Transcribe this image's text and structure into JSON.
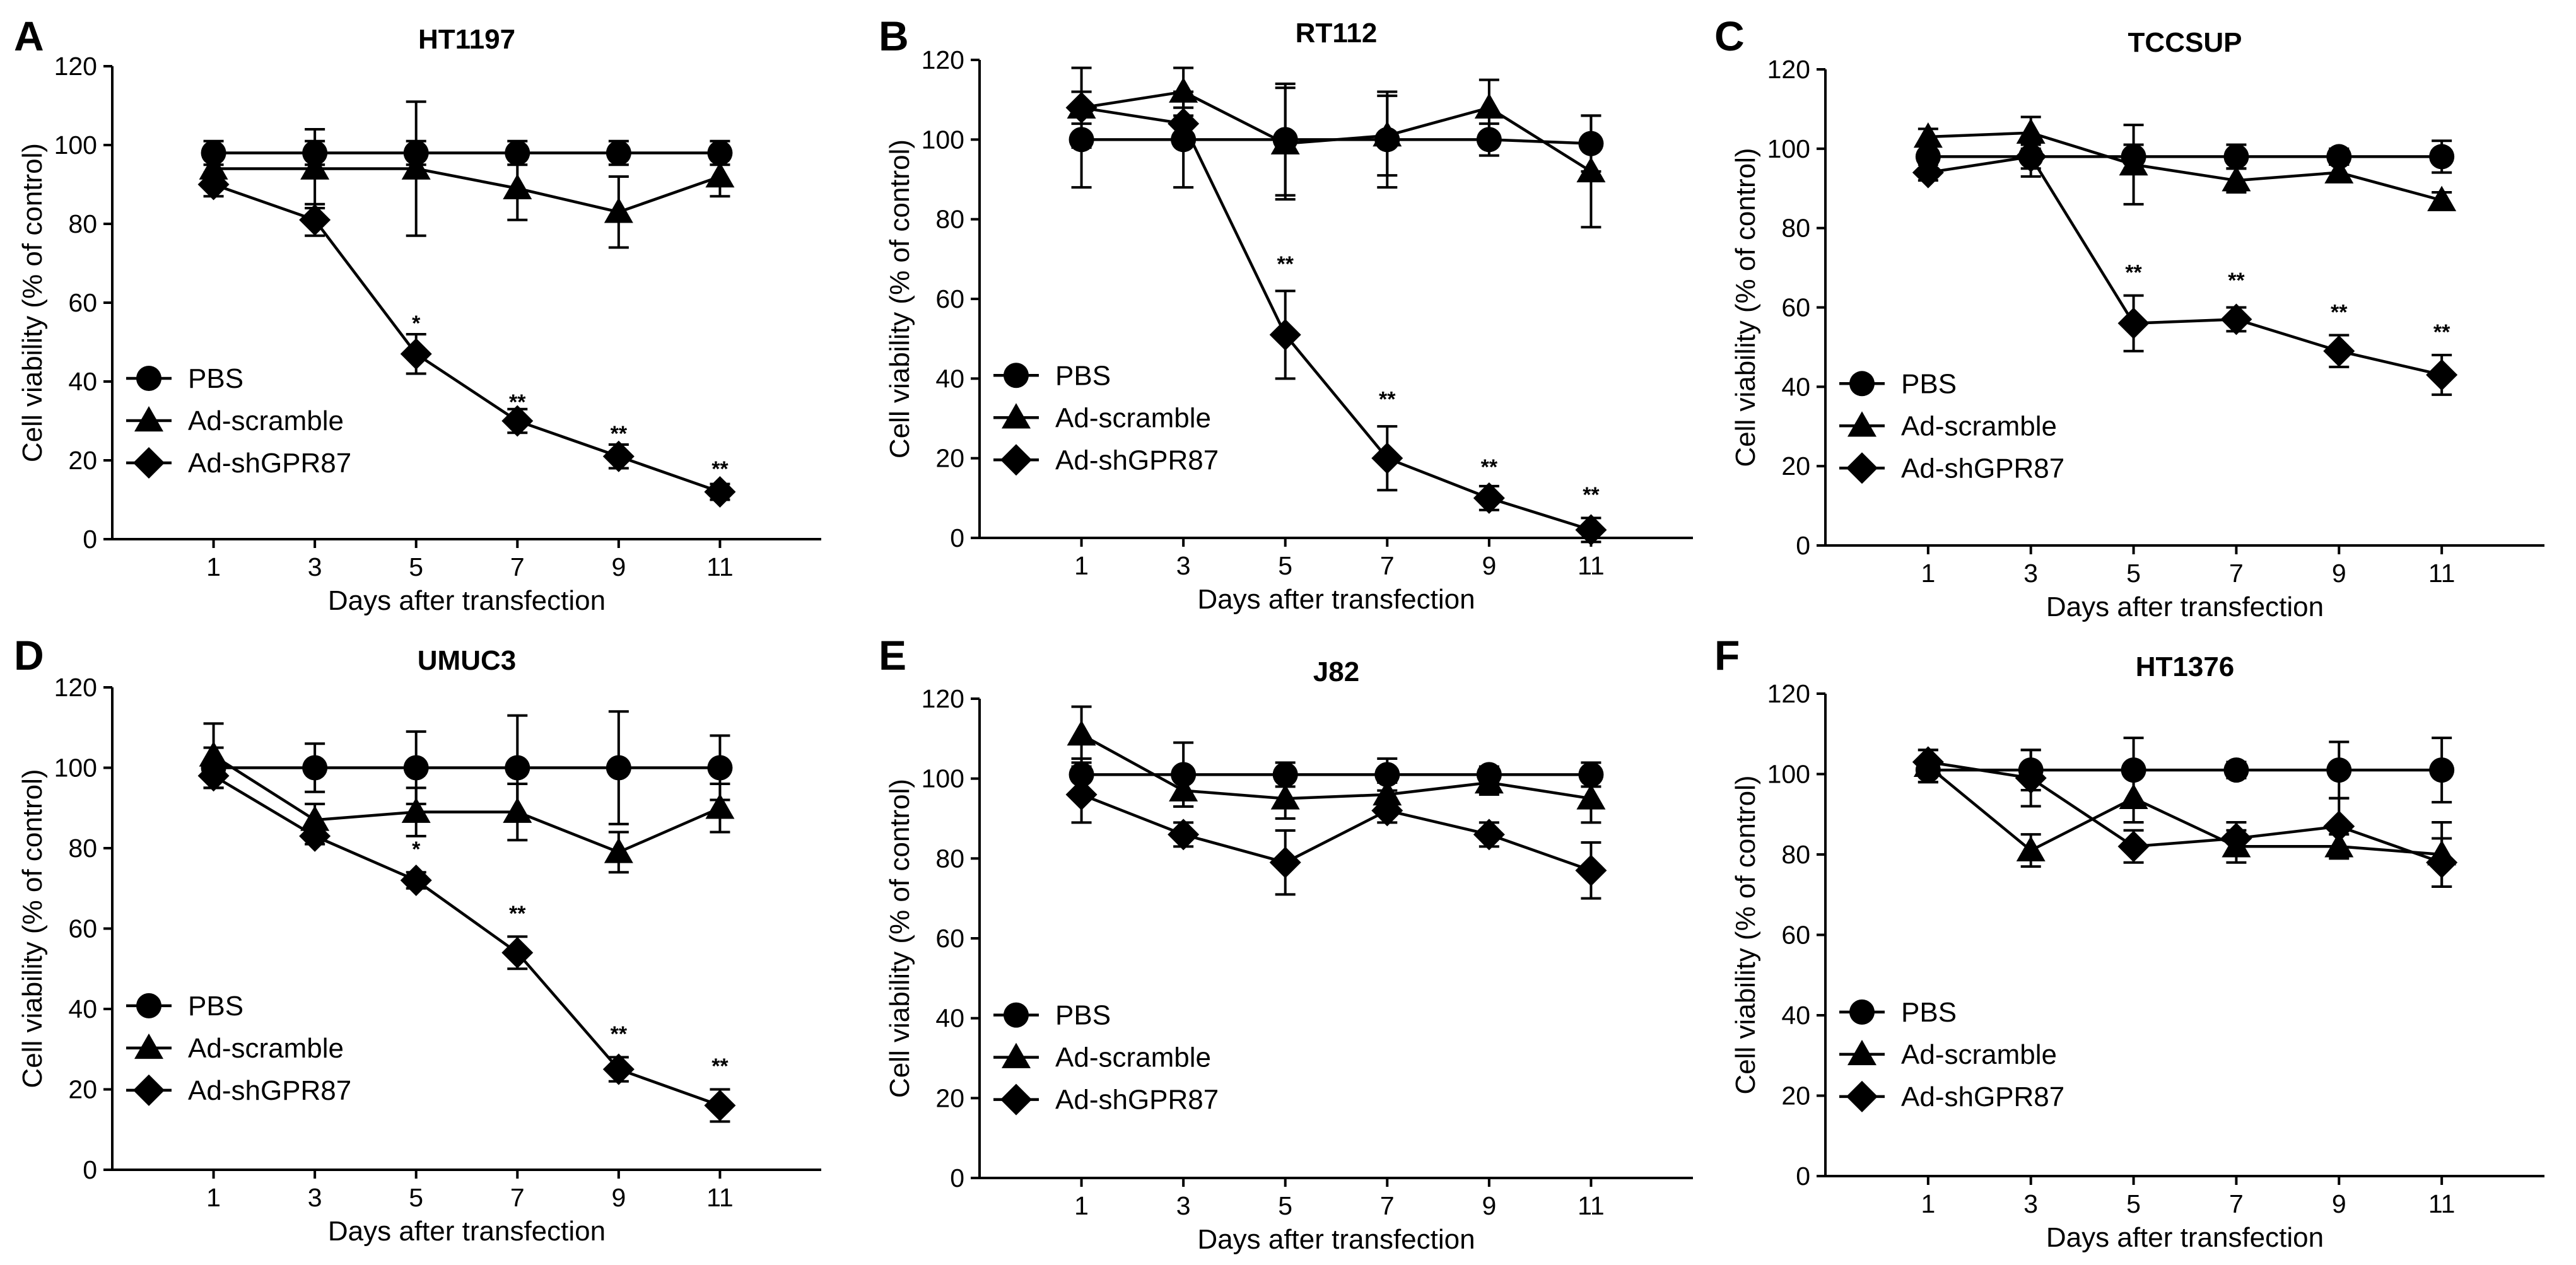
{
  "figure": {
    "x_label": "Days after transfection",
    "y_label": "Cell viability (% of control)",
    "legend": [
      "PBS",
      "Ad-scramble",
      "Ad-shGPR87"
    ]
  },
  "chart_data": [
    {
      "type": "line",
      "panel": "A",
      "title": "HT1197",
      "xlabel": "Days after transfection",
      "ylabel": "Cell viability (% of control)",
      "x": [
        1,
        3,
        5,
        7,
        9,
        11
      ],
      "xlim": [
        -1,
        13
      ],
      "ylim": [
        0,
        120
      ],
      "x_ticks": [
        1,
        3,
        5,
        7,
        9,
        11
      ],
      "y_ticks": [
        0,
        20,
        40,
        60,
        80,
        100,
        120
      ],
      "legend_position": "lower-left",
      "series": [
        {
          "name": "PBS",
          "marker": "circle",
          "values": [
            98,
            98,
            98,
            98,
            98,
            98
          ],
          "errors": [
            3,
            3,
            3,
            3,
            3,
            3
          ]
        },
        {
          "name": "Ad-scramble",
          "marker": "triangle",
          "values": [
            94,
            94,
            94,
            89,
            83,
            92
          ],
          "errors": [
            4,
            10,
            17,
            8,
            9,
            5
          ]
        },
        {
          "name": "Ad-shGPR87",
          "marker": "diamond",
          "values": [
            90,
            81,
            47,
            30,
            21,
            12
          ],
          "errors": [
            3,
            4,
            5,
            3,
            3,
            2
          ]
        }
      ],
      "significance": [
        {
          "x": 5,
          "y": 53,
          "label": "*"
        },
        {
          "x": 7,
          "y": 33,
          "label": "**"
        },
        {
          "x": 9,
          "y": 25,
          "label": "**"
        },
        {
          "x": 11,
          "y": 16,
          "label": "**"
        }
      ]
    },
    {
      "type": "line",
      "panel": "B",
      "title": "RT112",
      "xlabel": "Days after transfection",
      "ylabel": "Cell viability (% of control)",
      "x": [
        1,
        3,
        5,
        7,
        9,
        11
      ],
      "xlim": [
        -1,
        13
      ],
      "ylim": [
        0,
        120
      ],
      "x_ticks": [
        1,
        3,
        5,
        7,
        9,
        11
      ],
      "y_ticks": [
        0,
        20,
        40,
        60,
        80,
        100,
        120
      ],
      "legend_position": "lower-left",
      "series": [
        {
          "name": "PBS",
          "marker": "circle",
          "values": [
            100,
            100,
            100,
            100,
            100,
            99
          ],
          "errors": [
            12,
            12,
            14,
            12,
            4,
            7
          ]
        },
        {
          "name": "Ad-scramble",
          "marker": "triangle",
          "values": [
            108,
            112,
            99,
            101,
            108,
            92
          ],
          "errors": [
            10,
            6,
            14,
            10,
            7,
            14
          ]
        },
        {
          "name": "Ad-shGPR87",
          "marker": "diamond",
          "values": [
            108,
            104,
            51,
            20,
            10,
            2
          ],
          "errors": [
            4,
            4,
            11,
            8,
            3,
            3
          ]
        }
      ],
      "significance": [
        {
          "x": 5,
          "y": 67,
          "label": "**"
        },
        {
          "x": 7,
          "y": 33,
          "label": "**"
        },
        {
          "x": 9,
          "y": 16,
          "label": "**"
        },
        {
          "x": 11,
          "y": 9,
          "label": "**"
        }
      ]
    },
    {
      "type": "line",
      "panel": "C",
      "title": "TCCSUP",
      "xlabel": "Days after transfection",
      "ylabel": "Cell viability (% of control)",
      "x": [
        1,
        3,
        5,
        7,
        9,
        11
      ],
      "xlim": [
        -1,
        13
      ],
      "ylim": [
        0,
        120
      ],
      "x_ticks": [
        1,
        3,
        5,
        7,
        9,
        11
      ],
      "y_ticks": [
        0,
        20,
        40,
        60,
        80,
        100,
        120
      ],
      "legend_position": "lower-left",
      "series": [
        {
          "name": "PBS",
          "marker": "circle",
          "values": [
            98,
            98,
            98,
            98,
            98,
            98
          ],
          "errors": [
            3,
            3,
            3,
            3,
            2,
            4
          ]
        },
        {
          "name": "Ad-scramble",
          "marker": "triangle",
          "values": [
            103,
            104,
            96,
            92,
            94,
            87
          ],
          "errors": [
            2,
            4,
            10,
            3,
            2,
            2
          ]
        },
        {
          "name": "Ad-shGPR87",
          "marker": "diamond",
          "values": [
            94,
            98,
            56,
            57,
            49,
            43
          ],
          "errors": [
            2,
            5,
            7,
            3,
            4,
            5
          ]
        }
      ],
      "significance": [
        {
          "x": 5,
          "y": 67,
          "label": "**"
        },
        {
          "x": 7,
          "y": 65,
          "label": "**"
        },
        {
          "x": 9,
          "y": 57,
          "label": "**"
        },
        {
          "x": 11,
          "y": 52,
          "label": "**"
        }
      ]
    },
    {
      "type": "line",
      "panel": "D",
      "title": "UMUC3",
      "xlabel": "Days after transfection",
      "ylabel": "Cell viability (% of control)",
      "x": [
        1,
        3,
        5,
        7,
        9,
        11
      ],
      "xlim": [
        -1,
        13
      ],
      "ylim": [
        0,
        120
      ],
      "x_ticks": [
        1,
        3,
        5,
        7,
        9,
        11
      ],
      "y_ticks": [
        0,
        20,
        40,
        60,
        80,
        100,
        120
      ],
      "legend_position": "lower-left",
      "series": [
        {
          "name": "PBS",
          "marker": "circle",
          "values": [
            100,
            100,
            100,
            100,
            100,
            100
          ],
          "errors": [
            5,
            6,
            9,
            13,
            14,
            8
          ]
        },
        {
          "name": "Ad-scramble",
          "marker": "triangle",
          "values": [
            103,
            87,
            89,
            89,
            79,
            90
          ],
          "errors": [
            8,
            4,
            6,
            7,
            5,
            6
          ]
        },
        {
          "name": "Ad-shGPR87",
          "marker": "diamond",
          "values": [
            98,
            83,
            72,
            54,
            25,
            16
          ],
          "errors": [
            3,
            2,
            2,
            4,
            3,
            4
          ]
        }
      ],
      "significance": [
        {
          "x": 5,
          "y": 78,
          "label": "*"
        },
        {
          "x": 7,
          "y": 62,
          "label": "**"
        },
        {
          "x": 9,
          "y": 32,
          "label": "**"
        },
        {
          "x": 11,
          "y": 24,
          "label": "**"
        }
      ]
    },
    {
      "type": "line",
      "panel": "E",
      "title": "J82",
      "xlabel": "Days after transfection",
      "ylabel": "Cell viability (% of control)",
      "x": [
        1,
        3,
        5,
        7,
        9,
        11
      ],
      "xlim": [
        -1,
        13
      ],
      "ylim": [
        0,
        120
      ],
      "x_ticks": [
        1,
        3,
        5,
        7,
        9,
        11
      ],
      "y_ticks": [
        0,
        20,
        40,
        60,
        80,
        100,
        120
      ],
      "legend_position": "lower-left",
      "series": [
        {
          "name": "PBS",
          "marker": "circle",
          "values": [
            101,
            101,
            101,
            101,
            101,
            101
          ],
          "errors": [
            4,
            8,
            3,
            4,
            2,
            3
          ]
        },
        {
          "name": "Ad-scramble",
          "marker": "triangle",
          "values": [
            111,
            97,
            95,
            96,
            99,
            95
          ],
          "errors": [
            7,
            4,
            5,
            3,
            3,
            6
          ]
        },
        {
          "name": "Ad-shGPR87",
          "marker": "diamond",
          "values": [
            96,
            86,
            79,
            92,
            86,
            77
          ],
          "errors": [
            7,
            3,
            8,
            3,
            3,
            7
          ]
        }
      ],
      "significance": []
    },
    {
      "type": "line",
      "panel": "F",
      "title": "HT1376",
      "xlabel": "Days after transfection",
      "ylabel": "Cell viability (% of control)",
      "x": [
        1,
        3,
        5,
        7,
        9,
        11
      ],
      "xlim": [
        -1,
        13
      ],
      "ylim": [
        0,
        120
      ],
      "x_ticks": [
        1,
        3,
        5,
        7,
        9,
        11
      ],
      "y_ticks": [
        0,
        20,
        40,
        60,
        80,
        100,
        120
      ],
      "legend_position": "lower-left",
      "series": [
        {
          "name": "PBS",
          "marker": "circle",
          "values": [
            101,
            101,
            101,
            101,
            101,
            101
          ],
          "errors": [
            3,
            5,
            8,
            2,
            7,
            8
          ]
        },
        {
          "name": "Ad-scramble",
          "marker": "triangle",
          "values": [
            102,
            81,
            94,
            82,
            82,
            80
          ],
          "errors": [
            4,
            4,
            6,
            4,
            3,
            8
          ]
        },
        {
          "name": "Ad-shGPR87",
          "marker": "diamond",
          "values": [
            103,
            99,
            82,
            84,
            87,
            78
          ],
          "errors": [
            3,
            7,
            4,
            4,
            7,
            6
          ]
        }
      ],
      "significance": []
    }
  ]
}
